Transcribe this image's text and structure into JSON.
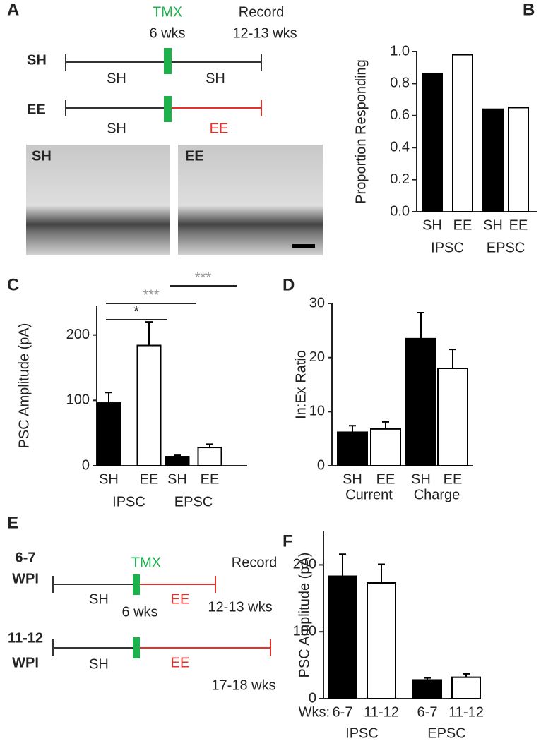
{
  "diagram_a": {
    "label": "A",
    "tmx": "TMX",
    "tmx_time": "6 wks",
    "record": "Record",
    "record_time": "12-13 wks",
    "rows": [
      {
        "label": "SH",
        "before": "SH",
        "after": "SH"
      },
      {
        "label": "EE",
        "before": "SH",
        "after": "EE"
      }
    ],
    "images": [
      "SH",
      "EE"
    ]
  },
  "diagram_e": {
    "label": "E",
    "tmx": "TMX",
    "record": "Record",
    "rows": [
      {
        "label": [
          "6-7",
          "WPI"
        ],
        "before": "SH",
        "after": "EE",
        "tmx_time": "6 wks",
        "end_time": "12-13 wks"
      },
      {
        "label": [
          "11-12",
          "WPI"
        ],
        "before": "SH",
        "after": "EE",
        "end_time": "17-18 wks"
      }
    ]
  },
  "chart_data": [
    {
      "type": "bar",
      "label": "B",
      "ylabel": "Proportion Responding",
      "categories": [
        "SH",
        "EE",
        "SH",
        "EE"
      ],
      "groups": [
        "IPSC",
        "EPSC"
      ],
      "values": [
        0.86,
        0.98,
        0.64,
        0.65
      ],
      "colors": [
        "#000000",
        "#ffffff",
        "#000000",
        "#ffffff"
      ],
      "ylim": [
        0,
        1
      ],
      "yticks": [
        {
          "value": 0,
          "label": "0.0"
        },
        0.2,
        0.4,
        0.6,
        0.8,
        {
          "value": 1,
          "label": "1.0"
        }
      ]
    },
    {
      "type": "bar",
      "label": "C",
      "ylabel": "PSC Amplitude (pA)",
      "categories": [
        "SH",
        "EE",
        "SH",
        "EE"
      ],
      "groups": [
        "IPSC",
        "EPSC"
      ],
      "values": [
        96,
        184,
        14,
        28
      ],
      "errors": [
        16,
        36,
        2,
        5
      ],
      "colors": [
        "#000000",
        "#ffffff",
        "#000000",
        "#ffffff"
      ],
      "significance": [
        "*",
        "***",
        "***"
      ],
      "ylim": [
        0,
        245
      ],
      "yticks": [
        0,
        100,
        200
      ]
    },
    {
      "type": "bar",
      "label": "D",
      "ylabel": "In:Ex Ratio",
      "categories": [
        "SH",
        "EE",
        "SH",
        "EE"
      ],
      "groups": [
        "Current",
        "Charge"
      ],
      "values": [
        6.2,
        6.8,
        23.5,
        18
      ],
      "errors": [
        1.2,
        1.3,
        4.8,
        3.5
      ],
      "colors": [
        "#000000",
        "#ffffff",
        "#000000",
        "#ffffff"
      ],
      "ylim": [
        0,
        30
      ],
      "yticks": [
        0,
        10,
        20,
        30
      ]
    },
    {
      "type": "bar",
      "label": "F",
      "ylabel": "PSC Amplitude (pA)",
      "x_prefix": "Wks:",
      "categories": [
        "6-7",
        "11-12",
        "6-7",
        "11-12"
      ],
      "groups": [
        "IPSC",
        "EPSC"
      ],
      "values": [
        183,
        173,
        28,
        32
      ],
      "errors": [
        33,
        28,
        3,
        5
      ],
      "colors": [
        "#000000",
        "#ffffff",
        "#000000",
        "#ffffff"
      ],
      "ylim": [
        0,
        250
      ],
      "yticks": [
        0,
        100,
        200
      ]
    }
  ]
}
